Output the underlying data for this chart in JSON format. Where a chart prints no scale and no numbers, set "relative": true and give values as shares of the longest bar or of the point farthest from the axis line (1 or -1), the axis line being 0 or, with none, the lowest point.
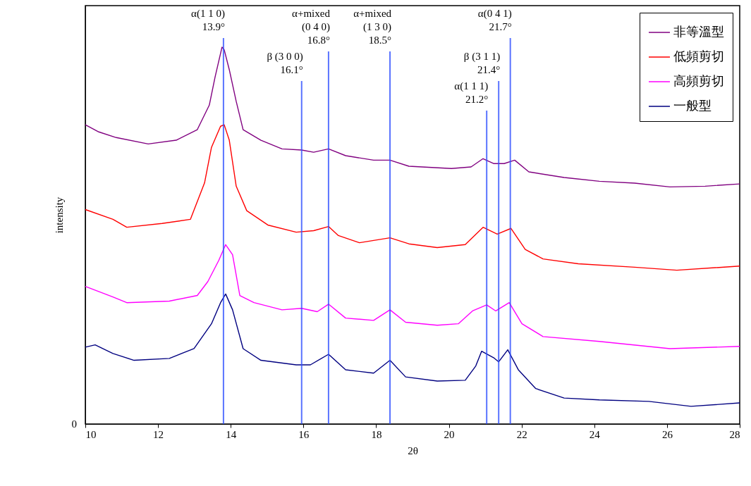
{
  "chart_data": {
    "type": "line",
    "xlabel": "2θ",
    "ylabel": "intensity",
    "relative": true,
    "xlim": [
      10,
      28
    ],
    "xticks": [
      10,
      12,
      14,
      16,
      18,
      20,
      22,
      24,
      26,
      28
    ],
    "grid": false,
    "legend": "top right",
    "marker": "none",
    "line_style": "solid",
    "series": [
      {
        "name": "非等溫型",
        "color": "#800080",
        "x": [
          10.0,
          10.37,
          10.85,
          11.73,
          12.5,
          13.08,
          13.41,
          13.57,
          13.76,
          13.82,
          13.96,
          14.15,
          14.34,
          14.83,
          15.41,
          15.95,
          16.28,
          16.69,
          17.16,
          17.93,
          18.38,
          18.9,
          20.07,
          20.61,
          20.94,
          21.23,
          21.52,
          21.81,
          22.2,
          23.17,
          24.14,
          25.11,
          26.08,
          27.05,
          28.0
        ],
        "values": [
          0.794,
          0.775,
          0.76,
          0.743,
          0.753,
          0.781,
          0.846,
          0.921,
          1.0,
          0.993,
          0.94,
          0.856,
          0.781,
          0.753,
          0.73,
          0.727,
          0.721,
          0.73,
          0.712,
          0.7,
          0.7,
          0.684,
          0.678,
          0.682,
          0.704,
          0.691,
          0.691,
          0.7,
          0.669,
          0.654,
          0.644,
          0.639,
          0.629,
          0.631,
          0.637
        ]
      },
      {
        "name": "低頻剪切",
        "color": "#ff0000",
        "x": [
          10.0,
          10.76,
          11.14,
          12.11,
          12.89,
          13.28,
          13.47,
          13.72,
          13.82,
          13.96,
          14.15,
          14.44,
          15.02,
          15.8,
          16.28,
          16.69,
          16.96,
          17.54,
          18.38,
          18.9,
          19.68,
          20.45,
          20.94,
          21.33,
          21.71,
          22.1,
          22.59,
          23.56,
          25.11,
          26.27,
          28.0
        ],
        "values": [
          0.569,
          0.543,
          0.522,
          0.532,
          0.543,
          0.64,
          0.734,
          0.79,
          0.794,
          0.753,
          0.631,
          0.566,
          0.528,
          0.509,
          0.513,
          0.524,
          0.5,
          0.481,
          0.494,
          0.478,
          0.468,
          0.476,
          0.522,
          0.504,
          0.519,
          0.463,
          0.438,
          0.425,
          0.416,
          0.408,
          0.419
        ]
      },
      {
        "name": "高頻剪切",
        "color": "#ff00ff",
        "x": [
          10.0,
          10.76,
          11.14,
          12.31,
          13.08,
          13.37,
          13.67,
          13.86,
          14.05,
          14.25,
          14.64,
          15.41,
          15.95,
          16.38,
          16.69,
          17.16,
          17.93,
          18.38,
          18.81,
          19.68,
          20.26,
          20.65,
          21.04,
          21.29,
          21.66,
          22.01,
          22.59,
          24.14,
          26.08,
          28.0
        ],
        "values": [
          0.365,
          0.337,
          0.322,
          0.326,
          0.341,
          0.378,
          0.434,
          0.476,
          0.449,
          0.341,
          0.322,
          0.303,
          0.307,
          0.298,
          0.318,
          0.281,
          0.275,
          0.303,
          0.27,
          0.262,
          0.266,
          0.3,
          0.316,
          0.3,
          0.322,
          0.266,
          0.232,
          0.219,
          0.2,
          0.206
        ]
      },
      {
        "name": "一般型",
        "color": "#000080",
        "x": [
          10.0,
          10.27,
          10.76,
          11.34,
          12.31,
          12.99,
          13.47,
          13.72,
          13.86,
          14.05,
          14.34,
          14.83,
          15.8,
          16.19,
          16.69,
          17.16,
          17.93,
          18.38,
          18.81,
          19.68,
          20.45,
          20.74,
          20.9,
          21.23,
          21.37,
          21.62,
          21.91,
          22.39,
          23.17,
          24.14,
          25.5,
          26.66,
          28.0
        ],
        "values": [
          0.204,
          0.21,
          0.187,
          0.169,
          0.174,
          0.2,
          0.266,
          0.322,
          0.345,
          0.303,
          0.2,
          0.169,
          0.157,
          0.157,
          0.185,
          0.144,
          0.135,
          0.169,
          0.125,
          0.114,
          0.116,
          0.154,
          0.193,
          0.176,
          0.165,
          0.197,
          0.144,
          0.094,
          0.069,
          0.064,
          0.06,
          0.047,
          0.056
        ]
      }
    ],
    "ref_lines": [
      {
        "axis": "x",
        "value": 13.8,
        "color": "#3050ff",
        "label": "α(1 1 0)\n13.9°"
      },
      {
        "axis": "x",
        "value": 15.95,
        "color": "#3050ff",
        "label": "β (3 0 0)\n16.1°"
      },
      {
        "axis": "x",
        "value": 16.69,
        "color": "#3050ff",
        "label": "α+mixed\n(0 4 0)\n16.8°"
      },
      {
        "axis": "x",
        "value": 18.38,
        "color": "#3050ff",
        "label": "α+mixed\n(1 3 0)\n18.5°"
      },
      {
        "axis": "x",
        "value": 21.04,
        "color": "#3050ff",
        "label": "α(1 1 1)\n21.2°"
      },
      {
        "axis": "x",
        "value": 21.37,
        "color": "#3050ff",
        "label": "β (3 1 1)\n21.4°"
      },
      {
        "axis": "x",
        "value": 21.69,
        "color": "#3050ff",
        "label": "α(0 4 1)\n21.7°"
      }
    ],
    "annotations": [
      "0"
    ]
  }
}
